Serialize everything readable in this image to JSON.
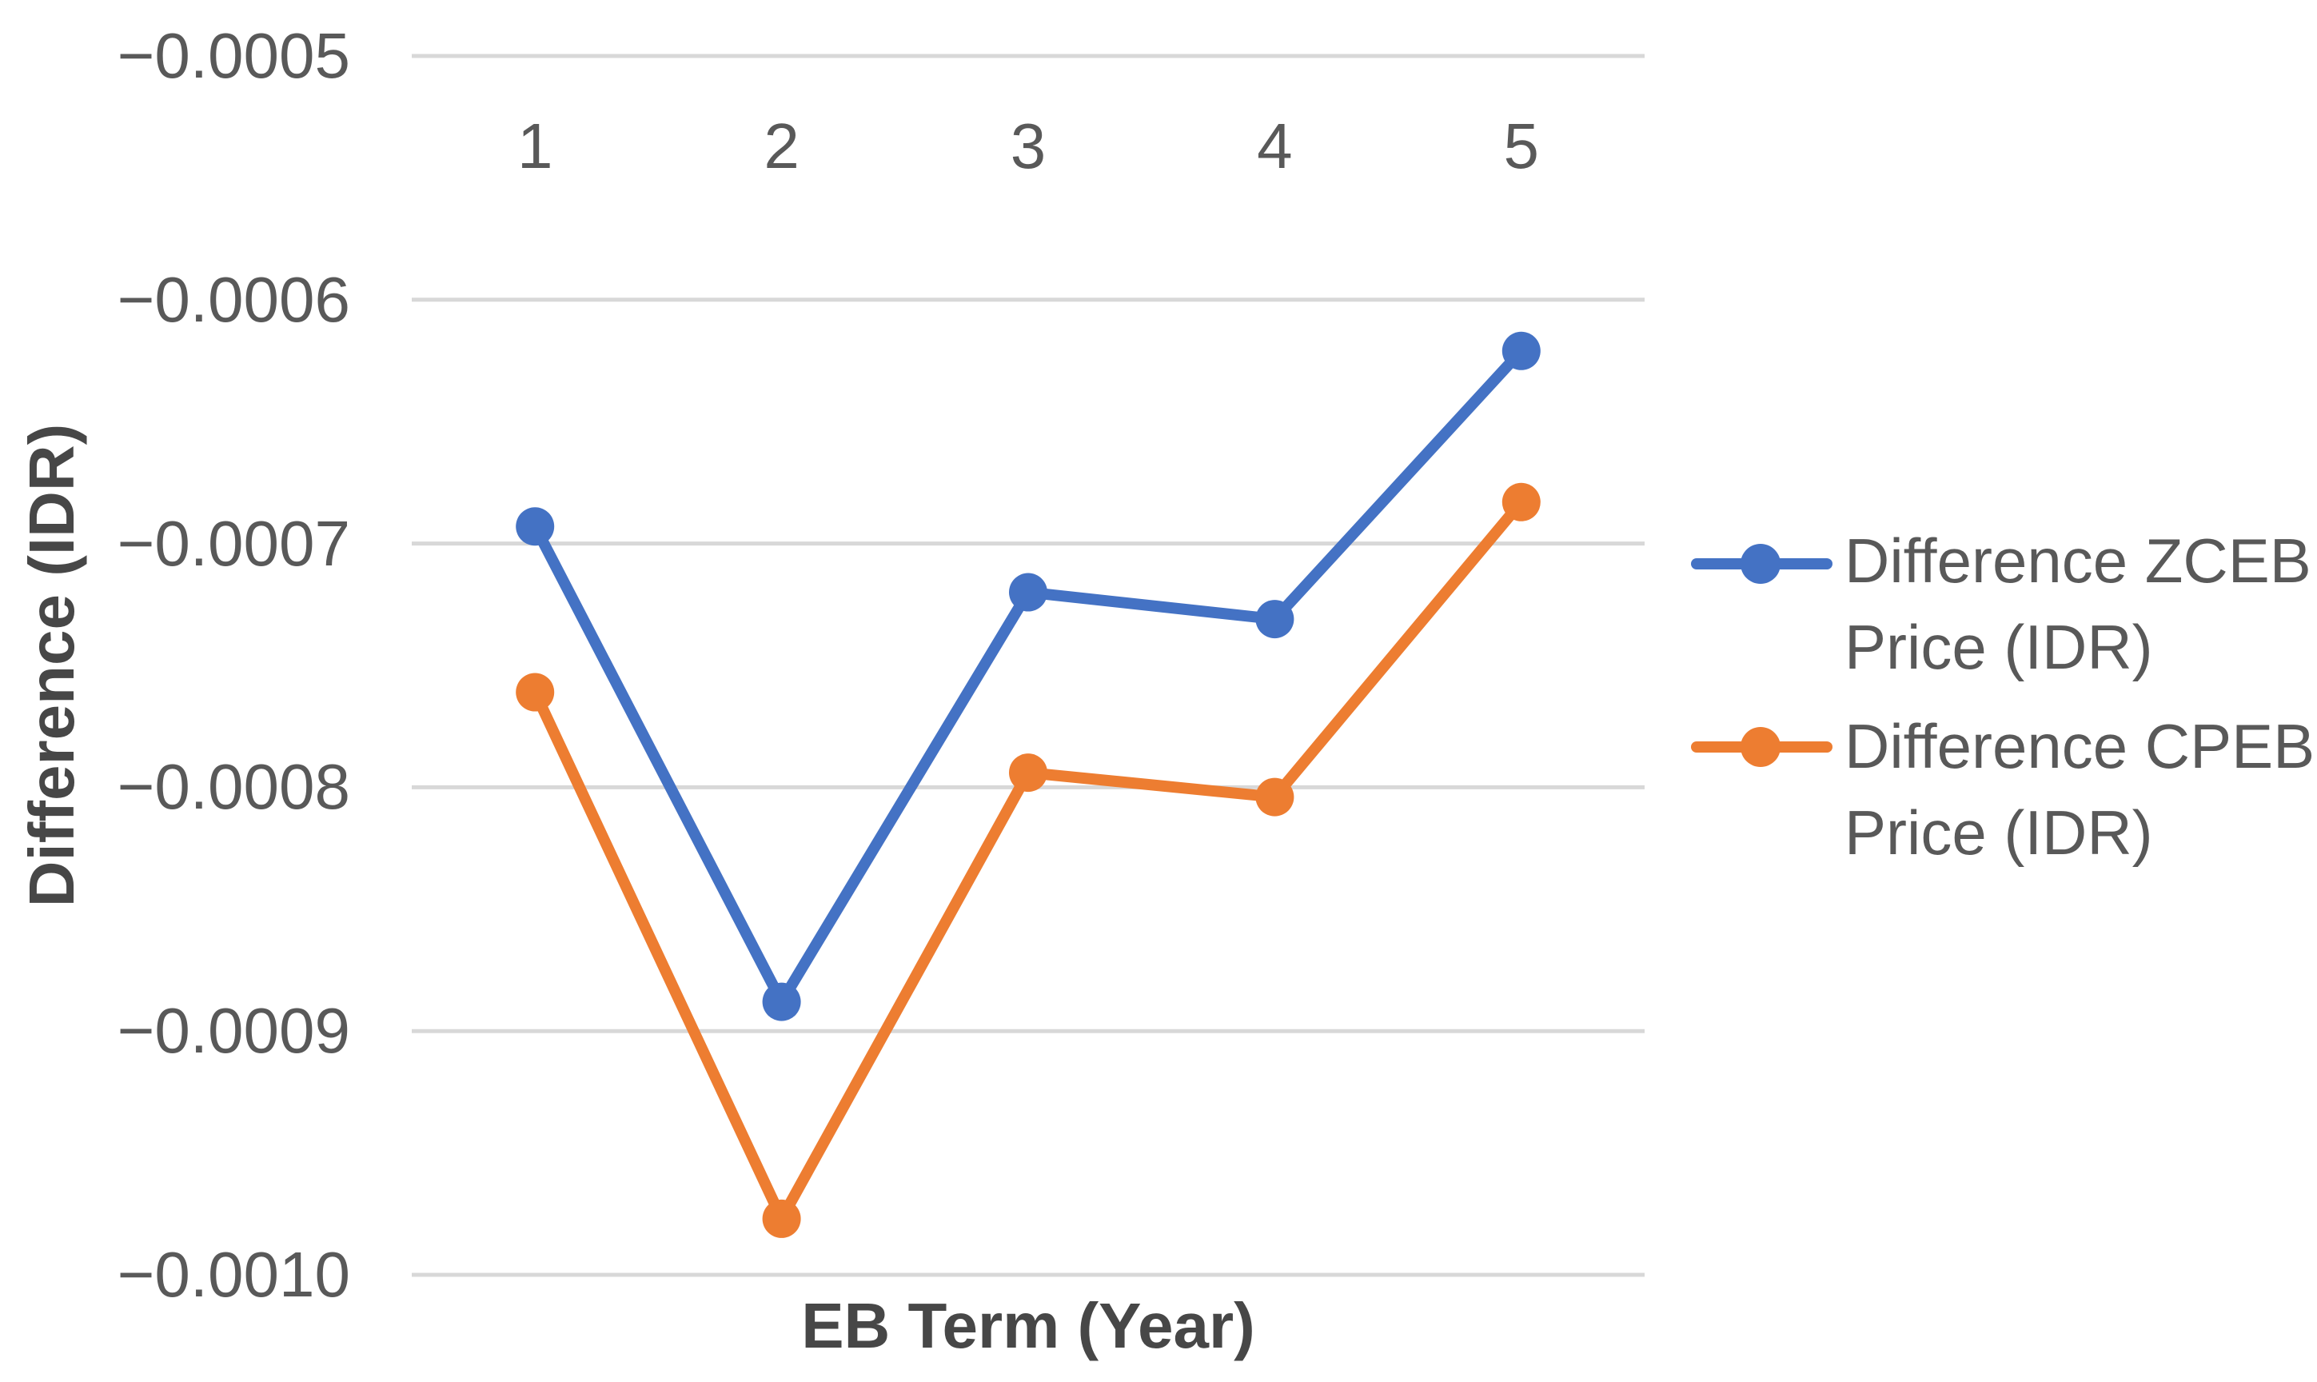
{
  "chart_data": {
    "type": "line",
    "title": "",
    "xlabel": "EB Term (Year)",
    "ylabel": "Difference (IDR)",
    "categories": [
      "1",
      "2",
      "3",
      "4",
      "5"
    ],
    "series": [
      {
        "name": "Difference ZCEB Price (IDR)",
        "color": "#4472C4",
        "values": [
          -0.000693,
          -0.000888,
          -0.00072,
          -0.000731,
          -0.000621
        ]
      },
      {
        "name": "Difference CPEB Price (IDR)",
        "color": "#ED7D31",
        "values": [
          -0.000761,
          -0.000977,
          -0.000794,
          -0.000804,
          -0.000683
        ]
      }
    ],
    "ylim": [
      -0.001,
      -0.0005
    ],
    "y_ticks": [
      {
        "label": "−0.0005",
        "value": -0.0005
      },
      {
        "label": "−0.0006",
        "value": -0.0006
      },
      {
        "label": "−0.0007",
        "value": -0.0007
      },
      {
        "label": "−0.0008",
        "value": -0.0008
      },
      {
        "label": "−0.0009",
        "value": -0.0009
      },
      {
        "label": "−0.0010",
        "value": -0.001
      }
    ],
    "grid": "horizontal",
    "legend_position": "right",
    "x_tick_position": "top",
    "marker": "circle",
    "gridline_color": "#d8d8d8",
    "text_color": "#595959"
  }
}
